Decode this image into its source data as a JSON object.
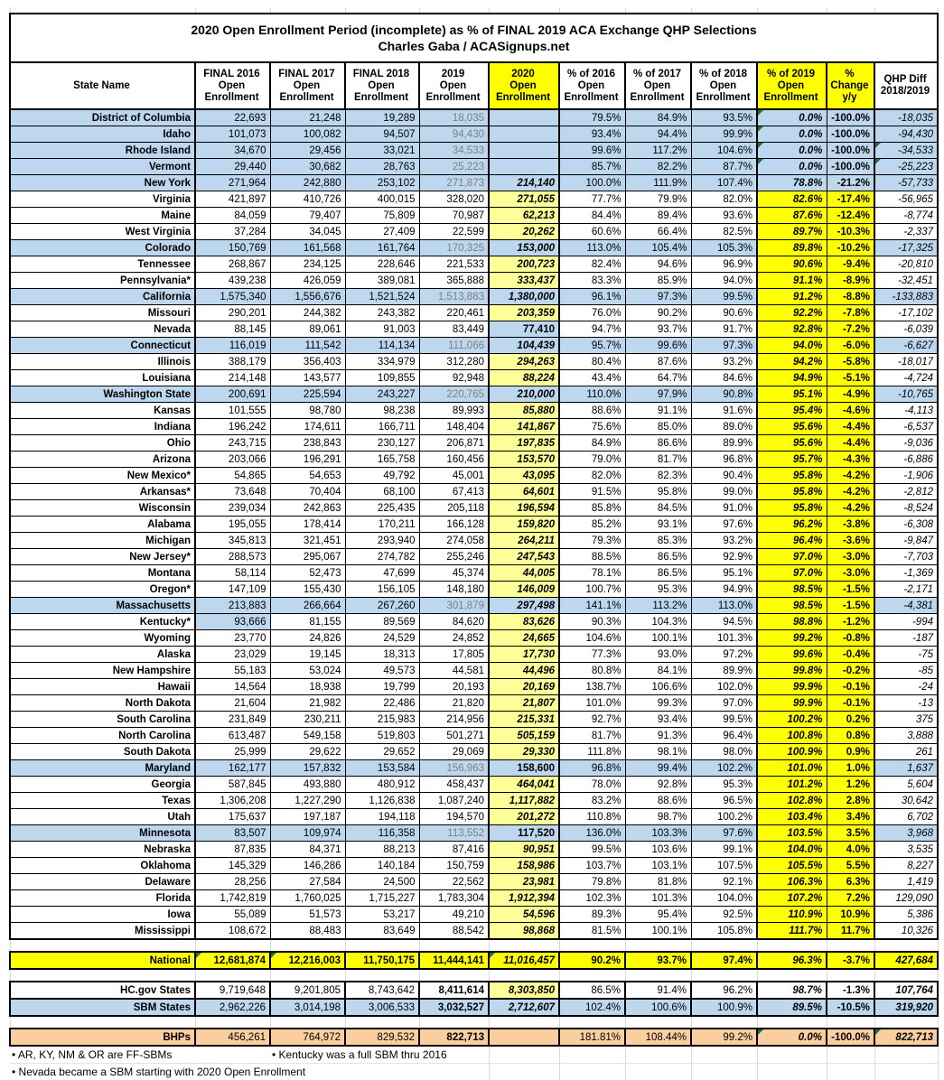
{
  "title": {
    "line1": "2020 Open Enrollment Period (incomplete) as % of FINAL 2019 ACA Exchange QHP Selections",
    "line2": "Charles Gaba / ACASignups.net"
  },
  "colors": {
    "row_highlight_blue": "#BDD7EE",
    "bright_yellow": "#FFFF00",
    "pale_yellow_2020": "#FFFF99",
    "bhp_peach": "#FBCEA0",
    "muted_2019_text": "#7F7F7F",
    "error_triangle_green": "#1E7145"
  },
  "chart_data": {
    "type": "table",
    "title": "2020 Open Enrollment Period (incomplete) as % of FINAL 2019 ACA Exchange QHP Selections",
    "subtitle": "Charles Gaba / ACASignups.net",
    "columns": [
      "State Name",
      "FINAL 2016\nOpen\nEnrollment",
      "FINAL 2017\nOpen\nEnrollment",
      "FINAL 2018\nOpen\nEnrollment",
      "2019\nOpen\nEnrollment",
      "2020\nOpen\nEnrollment",
      "% of 2016\nOpen\nEnrollment",
      "% of 2017\nOpen\nEnrollment",
      "% of 2018\nOpen\nEnrollment",
      "% of 2019\nOpen\nEnrollment",
      "%\nChange\ny/y",
      "QHP Diff\n2018/2019"
    ],
    "rows": [
      {
        "n": "District of Columbia",
        "v": [
          "22,693",
          "21,248",
          "19,289",
          "18,035",
          "",
          "79.5%",
          "84.9%",
          "93.5%",
          "0.0%",
          "-100.0%",
          "-18,035"
        ],
        "b": true,
        "ny": true,
        "y20": "none",
        "tri": [
          "p19"
        ]
      },
      {
        "n": "Idaho",
        "v": [
          "101,073",
          "100,082",
          "94,507",
          "94,430",
          "",
          "93.4%",
          "94.4%",
          "99.9%",
          "0.0%",
          "-100.0%",
          "-94,430"
        ],
        "b": true,
        "ny": true,
        "y20": "none",
        "tri": [
          "p19"
        ]
      },
      {
        "n": "Rhode Island",
        "v": [
          "34,670",
          "29,456",
          "33,021",
          "34,533",
          "",
          "99.6%",
          "117.2%",
          "104.6%",
          "0.0%",
          "-100.0%",
          "-34,533"
        ],
        "b": true,
        "ny": true,
        "y20": "none",
        "tri": [
          "p19",
          "diff"
        ]
      },
      {
        "n": "Vermont",
        "v": [
          "29,440",
          "30,682",
          "28,763",
          "25,223",
          "",
          "85.7%",
          "82.2%",
          "87.7%",
          "0.0%",
          "-100.0%",
          "-25,223"
        ],
        "b": true,
        "ny": true,
        "y20": "none",
        "tri": [
          "p19",
          "diff"
        ]
      },
      {
        "n": "New York",
        "v": [
          "271,964",
          "242,880",
          "253,102",
          "271,873",
          "214,140",
          "100.0%",
          "111.9%",
          "107.4%",
          "78.8%",
          "-21.2%",
          "-57,733"
        ],
        "b": true,
        "ny": true,
        "y20": "blue"
      },
      {
        "n": "Virginia",
        "v": [
          "421,897",
          "410,726",
          "400,015",
          "328,020",
          "271,055",
          "77.7%",
          "79.9%",
          "82.0%",
          "82.6%",
          "-17.4%",
          "-56,965"
        ],
        "y20": "pale"
      },
      {
        "n": "Maine",
        "v": [
          "84,059",
          "79,407",
          "75,809",
          "70,987",
          "62,213",
          "84.4%",
          "89.4%",
          "93.6%",
          "87.6%",
          "-12.4%",
          "-8,774"
        ],
        "y20": "pale"
      },
      {
        "n": "West Virginia",
        "v": [
          "37,284",
          "34,045",
          "27,409",
          "22,599",
          "20,262",
          "60.6%",
          "66.4%",
          "82.5%",
          "89.7%",
          "-10.3%",
          "-2,337"
        ],
        "y20": "pale"
      },
      {
        "n": "Colorado",
        "v": [
          "150,769",
          "161,568",
          "161,764",
          "170,325",
          "153,000",
          "113.0%",
          "105.4%",
          "105.3%",
          "89.8%",
          "-10.2%",
          "-17,325"
        ],
        "b": true,
        "y20": "blue"
      },
      {
        "n": "Tennessee",
        "v": [
          "268,867",
          "234,125",
          "228,646",
          "221,533",
          "200,723",
          "82.4%",
          "94.6%",
          "96.9%",
          "90.6%",
          "-9.4%",
          "-20,810"
        ],
        "y20": "pale"
      },
      {
        "n": "Pennsylvania*",
        "v": [
          "439,238",
          "426,059",
          "389,081",
          "365,888",
          "333,437",
          "83.3%",
          "85.9%",
          "94.0%",
          "91.1%",
          "-8.9%",
          "-32,451"
        ],
        "y20": "pale"
      },
      {
        "n": "California",
        "v": [
          "1,575,340",
          "1,556,676",
          "1,521,524",
          "1,513,883",
          "1,380,000",
          "96.1%",
          "97.3%",
          "99.5%",
          "91.2%",
          "-8.8%",
          "-133,883"
        ],
        "b": true,
        "y20": "blue"
      },
      {
        "n": "Missouri",
        "v": [
          "290,201",
          "244,382",
          "243,382",
          "220,461",
          "203,359",
          "76.0%",
          "90.2%",
          "90.6%",
          "92.2%",
          "-7.8%",
          "-17,102"
        ],
        "y20": "pale"
      },
      {
        "n": "Nevada",
        "v": [
          "88,145",
          "89,061",
          "91,003",
          "83,449",
          "77,410",
          "94.7%",
          "93.7%",
          "91.7%",
          "92.8%",
          "-7.2%",
          "-6,039"
        ],
        "y20": "blue",
        "ni": true
      },
      {
        "n": "Connecticut",
        "v": [
          "116,019",
          "111,542",
          "114,134",
          "111,066",
          "104,439",
          "95.7%",
          "99.6%",
          "97.3%",
          "94.0%",
          "-6.0%",
          "-6,627"
        ],
        "b": true,
        "y20": "blue"
      },
      {
        "n": "Illinois",
        "v": [
          "388,179",
          "356,403",
          "334,979",
          "312,280",
          "294,263",
          "80.4%",
          "87.6%",
          "93.2%",
          "94.2%",
          "-5.8%",
          "-18,017"
        ],
        "y20": "pale"
      },
      {
        "n": "Louisiana",
        "v": [
          "214,148",
          "143,577",
          "109,855",
          "92,948",
          "88,224",
          "43.4%",
          "64.7%",
          "84.6%",
          "94.9%",
          "-5.1%",
          "-4,724"
        ],
        "y20": "pale"
      },
      {
        "n": "Washington State",
        "v": [
          "200,691",
          "225,594",
          "243,227",
          "220,765",
          "210,000",
          "110.0%",
          "97.9%",
          "90.8%",
          "95.1%",
          "-4.9%",
          "-10,765"
        ],
        "b": true,
        "y20": "blue"
      },
      {
        "n": "Kansas",
        "v": [
          "101,555",
          "98,780",
          "98,238",
          "89,993",
          "85,880",
          "88.6%",
          "91.1%",
          "91.6%",
          "95.4%",
          "-4.6%",
          "-4,113"
        ],
        "y20": "pale"
      },
      {
        "n": "Indiana",
        "v": [
          "196,242",
          "174,611",
          "166,711",
          "148,404",
          "141,867",
          "75.6%",
          "85.0%",
          "89.0%",
          "95.6%",
          "-4.4%",
          "-6,537"
        ],
        "y20": "pale"
      },
      {
        "n": "Ohio",
        "v": [
          "243,715",
          "238,843",
          "230,127",
          "206,871",
          "197,835",
          "84.9%",
          "86.6%",
          "89.9%",
          "95.6%",
          "-4.4%",
          "-9,036"
        ],
        "y20": "pale"
      },
      {
        "n": "Arizona",
        "v": [
          "203,066",
          "196,291",
          "165,758",
          "160,456",
          "153,570",
          "79.0%",
          "81.7%",
          "96.8%",
          "95.7%",
          "-4.3%",
          "-6,886"
        ],
        "y20": "pale"
      },
      {
        "n": "New Mexico*",
        "v": [
          "54,865",
          "54,653",
          "49,792",
          "45,001",
          "43,095",
          "82.0%",
          "82.3%",
          "90.4%",
          "95.8%",
          "-4.2%",
          "-1,906"
        ],
        "y20": "pale"
      },
      {
        "n": "Arkansas*",
        "v": [
          "73,648",
          "70,404",
          "68,100",
          "67,413",
          "64,601",
          "91.5%",
          "95.8%",
          "99.0%",
          "95.8%",
          "-4.2%",
          "-2,812"
        ],
        "y20": "pale"
      },
      {
        "n": "Wisconsin",
        "v": [
          "239,034",
          "242,863",
          "225,435",
          "205,118",
          "196,594",
          "85.8%",
          "84.5%",
          "91.0%",
          "95.8%",
          "-4.2%",
          "-8,524"
        ],
        "y20": "pale"
      },
      {
        "n": "Alabama",
        "v": [
          "195,055",
          "178,414",
          "170,211",
          "166,128",
          "159,820",
          "85.2%",
          "93.1%",
          "97.6%",
          "96.2%",
          "-3.8%",
          "-6,308"
        ],
        "y20": "pale"
      },
      {
        "n": "Michigan",
        "v": [
          "345,813",
          "321,451",
          "293,940",
          "274,058",
          "264,211",
          "79.3%",
          "85.3%",
          "93.2%",
          "96.4%",
          "-3.6%",
          "-9,847"
        ],
        "y20": "pale"
      },
      {
        "n": "New Jersey*",
        "v": [
          "288,573",
          "295,067",
          "274,782",
          "255,246",
          "247,543",
          "88.5%",
          "86.5%",
          "92.9%",
          "97.0%",
          "-3.0%",
          "-7,703"
        ],
        "y20": "pale"
      },
      {
        "n": "Montana",
        "v": [
          "58,114",
          "52,473",
          "47,699",
          "45,374",
          "44,005",
          "78.1%",
          "86.5%",
          "95.1%",
          "97.0%",
          "-3.0%",
          "-1,369"
        ],
        "y20": "pale"
      },
      {
        "n": "Oregon*",
        "v": [
          "147,109",
          "155,430",
          "156,105",
          "148,180",
          "146,009",
          "100.7%",
          "95.3%",
          "94.9%",
          "98.5%",
          "-1.5%",
          "-2,171"
        ],
        "y20": "pale"
      },
      {
        "n": "Massachusetts",
        "v": [
          "213,883",
          "266,664",
          "267,260",
          "301,879",
          "297,498",
          "141.1%",
          "113.2%",
          "113.0%",
          "98.5%",
          "-1.5%",
          "-4,381"
        ],
        "b": true,
        "y20": "blue"
      },
      {
        "n": "Kentucky*",
        "v": [
          "93,666",
          "81,155",
          "89,569",
          "84,620",
          "83,626",
          "90.3%",
          "104.3%",
          "94.5%",
          "98.8%",
          "-1.2%",
          "-994"
        ],
        "y20": "pale",
        "ky": true
      },
      {
        "n": "Wyoming",
        "v": [
          "23,770",
          "24,826",
          "24,529",
          "24,852",
          "24,665",
          "104.6%",
          "100.1%",
          "101.3%",
          "99.2%",
          "-0.8%",
          "-187"
        ],
        "y20": "pale"
      },
      {
        "n": "Alaska",
        "v": [
          "23,029",
          "19,145",
          "18,313",
          "17,805",
          "17,730",
          "77.3%",
          "93.0%",
          "97.2%",
          "99.6%",
          "-0.4%",
          "-75"
        ],
        "y20": "pale"
      },
      {
        "n": "New Hampshire",
        "v": [
          "55,183",
          "53,024",
          "49,573",
          "44,581",
          "44,496",
          "80.8%",
          "84.1%",
          "89.9%",
          "99.8%",
          "-0.2%",
          "-85"
        ],
        "y20": "pale"
      },
      {
        "n": "Hawaii",
        "v": [
          "14,564",
          "18,938",
          "19,799",
          "20,193",
          "20,169",
          "138.7%",
          "106.6%",
          "102.0%",
          "99.9%",
          "-0.1%",
          "-24"
        ],
        "y20": "pale"
      },
      {
        "n": "North Dakota",
        "v": [
          "21,604",
          "21,982",
          "22,486",
          "21,820",
          "21,807",
          "101.0%",
          "99.3%",
          "97.0%",
          "99.9%",
          "-0.1%",
          "-13"
        ],
        "y20": "pale"
      },
      {
        "n": "South Carolina",
        "v": [
          "231,849",
          "230,211",
          "215,983",
          "214,956",
          "215,331",
          "92.7%",
          "93.4%",
          "99.5%",
          "100.2%",
          "0.2%",
          "375"
        ],
        "y20": "pale"
      },
      {
        "n": "North Carolina",
        "v": [
          "613,487",
          "549,158",
          "519,803",
          "501,271",
          "505,159",
          "81.7%",
          "91.3%",
          "96.4%",
          "100.8%",
          "0.8%",
          "3,888"
        ],
        "y20": "pale"
      },
      {
        "n": "South Dakota",
        "v": [
          "25,999",
          "29,622",
          "29,652",
          "29,069",
          "29,330",
          "111.8%",
          "98.1%",
          "98.0%",
          "100.9%",
          "0.9%",
          "261"
        ],
        "y20": "pale"
      },
      {
        "n": "Maryland",
        "v": [
          "162,177",
          "157,832",
          "153,584",
          "156,963",
          "158,600",
          "96.8%",
          "99.4%",
          "102.2%",
          "101.0%",
          "1.0%",
          "1,637"
        ],
        "b": true,
        "y20": "blue",
        "ni": true
      },
      {
        "n": "Georgia",
        "v": [
          "587,845",
          "493,880",
          "480,912",
          "458,437",
          "464,041",
          "78.0%",
          "92.8%",
          "95.3%",
          "101.2%",
          "1.2%",
          "5,604"
        ],
        "y20": "pale"
      },
      {
        "n": "Texas",
        "v": [
          "1,306,208",
          "1,227,290",
          "1,126,838",
          "1,087,240",
          "1,117,882",
          "83.2%",
          "88.6%",
          "96.5%",
          "102.8%",
          "2.8%",
          "30,642"
        ],
        "y20": "pale"
      },
      {
        "n": "Utah",
        "v": [
          "175,637",
          "197,187",
          "194,118",
          "194,570",
          "201,272",
          "110.8%",
          "98.7%",
          "100.2%",
          "103.4%",
          "3.4%",
          "6,702"
        ],
        "y20": "pale"
      },
      {
        "n": "Minnesota",
        "v": [
          "83,507",
          "109,974",
          "116,358",
          "113,552",
          "117,520",
          "136.0%",
          "103.3%",
          "97.6%",
          "103.5%",
          "3.5%",
          "3,968"
        ],
        "b": true,
        "y20": "blue",
        "ni": true
      },
      {
        "n": "Nebraska",
        "v": [
          "87,835",
          "84,371",
          "88,213",
          "87,416",
          "90,951",
          "99.5%",
          "103.6%",
          "99.1%",
          "104.0%",
          "4.0%",
          "3,535"
        ],
        "y20": "pale"
      },
      {
        "n": "Oklahoma",
        "v": [
          "145,329",
          "146,286",
          "140,184",
          "150,759",
          "158,986",
          "103.7%",
          "103.1%",
          "107.5%",
          "105.5%",
          "5.5%",
          "8,227"
        ],
        "y20": "pale"
      },
      {
        "n": "Delaware",
        "v": [
          "28,256",
          "27,584",
          "24,500",
          "22,562",
          "23,981",
          "79.8%",
          "81.8%",
          "92.1%",
          "106.3%",
          "6.3%",
          "1,419"
        ],
        "y20": "pale"
      },
      {
        "n": "Florida",
        "v": [
          "1,742,819",
          "1,760,025",
          "1,715,227",
          "1,783,304",
          "1,912,394",
          "102.3%",
          "101.3%",
          "104.0%",
          "107.2%",
          "7.2%",
          "129,090"
        ],
        "y20": "pale"
      },
      {
        "n": "Iowa",
        "v": [
          "55,089",
          "51,573",
          "53,217",
          "49,210",
          "54,596",
          "89.3%",
          "95.4%",
          "92.5%",
          "110.9%",
          "10.9%",
          "5,386"
        ],
        "y20": "pale"
      },
      {
        "n": "Mississippi",
        "v": [
          "108,672",
          "88,483",
          "83,649",
          "88,542",
          "98,868",
          "81.5%",
          "100.1%",
          "105.8%",
          "111.7%",
          "11.7%",
          "10,326"
        ],
        "y20": "pale"
      }
    ],
    "summary_rows": [
      {
        "key": "national",
        "n": "National",
        "v": [
          "12,681,874",
          "12,216,003",
          "11,750,175",
          "11,444,141",
          "11,016,457",
          "90.2%",
          "93.7%",
          "97.4%",
          "96.3%",
          "-3.7%",
          "427,684"
        ],
        "tri": [
          "f16",
          "f17",
          "y20"
        ]
      },
      {
        "key": "hcgov",
        "n": "HC.gov States",
        "v": [
          "9,719,648",
          "9,201,805",
          "8,743,642",
          "8,411,614",
          "8,303,850",
          "86.5%",
          "91.4%",
          "96.2%",
          "98.7%",
          "-1.3%",
          "107,764"
        ]
      },
      {
        "key": "sbm",
        "n": "SBM States",
        "v": [
          "2,962,226",
          "3,014,198",
          "3,006,533",
          "3,032,527",
          "2,712,607",
          "102.4%",
          "100.6%",
          "100.9%",
          "89.5%",
          "-10.5%",
          "319,920"
        ]
      },
      {
        "key": "bhp",
        "n": "BHPs",
        "v": [
          "456,261",
          "764,972",
          "829,532",
          "822,713",
          "",
          "181.81%",
          "108.44%",
          "99.2%",
          "0.0%",
          "-100.0%",
          "822,713"
        ],
        "tri": [
          "p19",
          "diff"
        ]
      }
    ],
    "footnotes": [
      "• AR, KY, NM & OR are FF-SBMs",
      "• Kentucky was a full SBM thru 2016",
      "• Nevada became a SBM starting with 2020 Open Enrollment"
    ],
    "layout": {
      "grid": true,
      "highlight_legend": "blue rows = State-Based Marketplaces (SBM)"
    }
  }
}
